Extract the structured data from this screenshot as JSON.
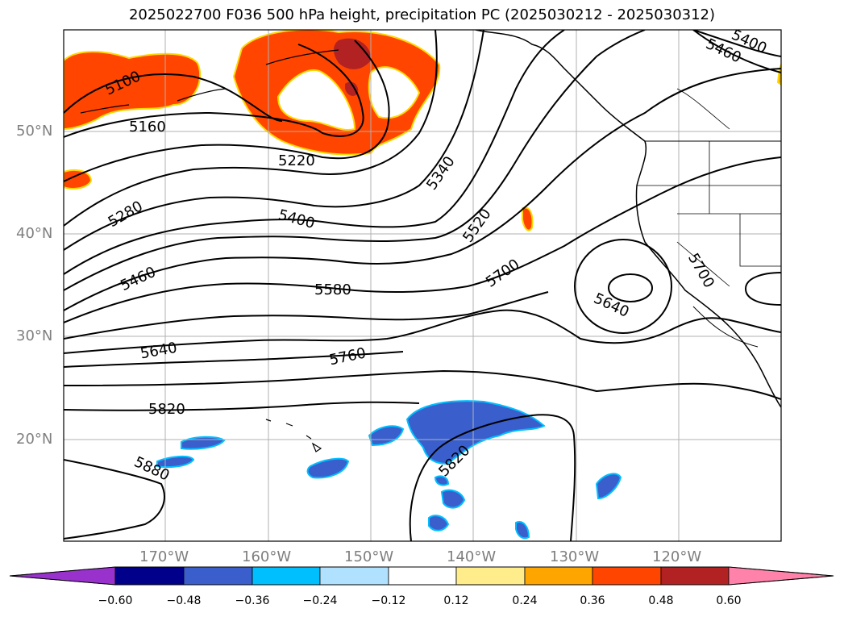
{
  "title": "2025022700 F036 500 hPa height, precipitation PC (2025030212 - 2025030312)",
  "map": {
    "lat_labels": [
      "50°N",
      "40°N",
      "30°N",
      "20°N"
    ],
    "lon_labels": [
      "170°W",
      "160°W",
      "150°W",
      "140°W",
      "130°W",
      "120°W"
    ],
    "contour_labels": [
      "5100",
      "5160",
      "5220",
      "5280",
      "5340",
      "5400",
      "5460",
      "5520",
      "5580",
      "5640",
      "5700",
      "5760",
      "5820",
      "5880",
      "5400",
      "5460",
      "5640",
      "5700",
      "5820"
    ],
    "contour_color": "#000000",
    "gridline_color": "#b0b0b0"
  },
  "colorbar": {
    "tick_labels": [
      "−0.60",
      "−0.48",
      "−0.36",
      "−0.24",
      "−0.12",
      "0.12",
      "0.24",
      "0.36",
      "0.48",
      "0.60"
    ],
    "colors": [
      "#9932CC",
      "#00008B",
      "#3A5FCD",
      "#00BFFF",
      "#B0E2FF",
      "#FFFFFF",
      "#FFEC8B",
      "#FFA500",
      "#FF4500",
      "#B22222",
      "#FF82AB"
    ]
  }
}
